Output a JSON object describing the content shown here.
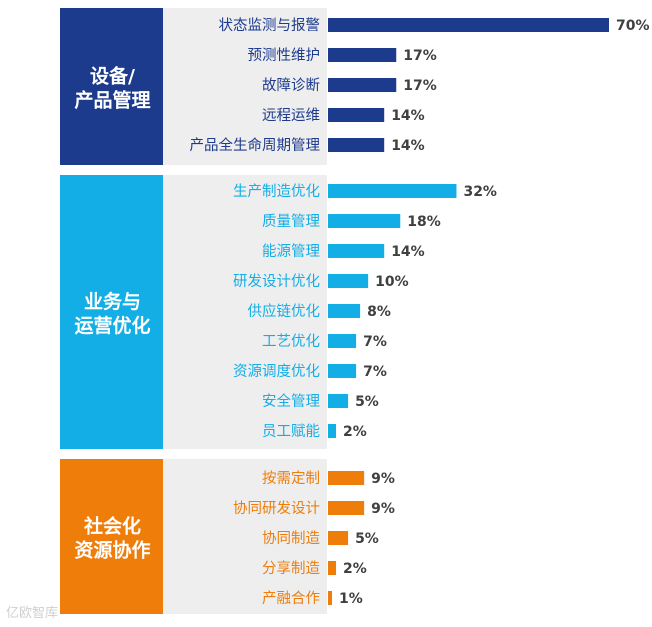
{
  "chart_data": {
    "type": "bar",
    "orientation": "horizontal",
    "value_unit": "%",
    "groups": [
      {
        "name_lines": [
          "设备/",
          "产品管理"
        ],
        "color": "#1d3b8c",
        "items": [
          {
            "label": "状态监测与报警",
            "value": 70
          },
          {
            "label": "预测性维护",
            "value": 17
          },
          {
            "label": "故障诊断",
            "value": 17
          },
          {
            "label": "远程运维",
            "value": 14
          },
          {
            "label": "产品全生命周期管理",
            "value": 14
          }
        ]
      },
      {
        "name_lines": [
          "业务与",
          "运营优化"
        ],
        "color": "#13aee6",
        "items": [
          {
            "label": "生产制造优化",
            "value": 32
          },
          {
            "label": "质量管理",
            "value": 18
          },
          {
            "label": "能源管理",
            "value": 14
          },
          {
            "label": "研发设计优化",
            "value": 10
          },
          {
            "label": "供应链优化",
            "value": 8
          },
          {
            "label": "工艺优化",
            "value": 7
          },
          {
            "label": "资源调度优化",
            "value": 7
          },
          {
            "label": "安全管理",
            "value": 5
          },
          {
            "label": "员工赋能",
            "value": 2
          }
        ]
      },
      {
        "name_lines": [
          "社会化",
          "资源协作"
        ],
        "color": "#ef7d0a",
        "items": [
          {
            "label": "按需定制",
            "value": 9
          },
          {
            "label": "协同研发设计",
            "value": 9
          },
          {
            "label": "协同制造",
            "value": 5
          },
          {
            "label": "分享制造",
            "value": 2
          },
          {
            "label": "产融合作",
            "value": 1
          }
        ]
      }
    ]
  },
  "watermark": "亿欧智库"
}
